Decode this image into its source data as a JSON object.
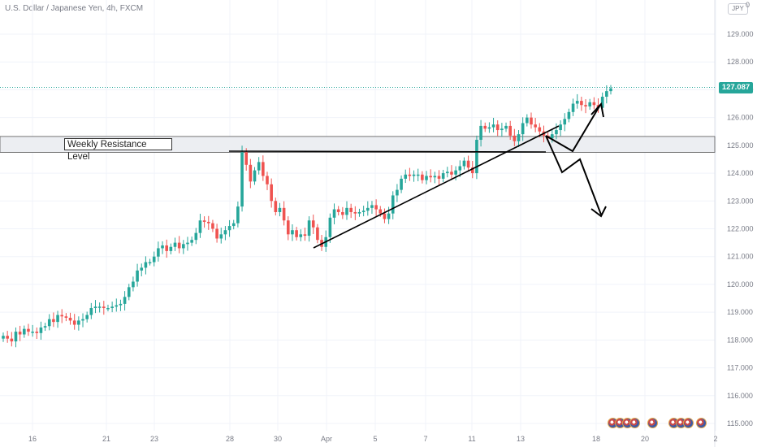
{
  "header": {
    "title": "U.S. Dollar / Japanese Yen, 4h, FXCM",
    "currency_badge": "JPY",
    "top_tick_partial": "0"
  },
  "annotation": {
    "label": "Weekly Resistance Level"
  },
  "price_tag": {
    "value": "127.087",
    "color": "#26a69a"
  },
  "colors": {
    "up": "#26a69a",
    "down": "#ef5350",
    "zone_fill": "#eceef2",
    "line": "#000000"
  },
  "icons": {
    "events": [
      "flag-icon-us",
      "flag-icon-us",
      "flag-icon-us",
      "flag-icon-us",
      "flag-icon-us",
      "flag-icon-us",
      "flag-icon-us",
      "flag-icon-us",
      "flag-icon-us"
    ]
  },
  "chart_data": {
    "type": "candlestick",
    "title": "U.S. Dollar / Japanese Yen, 4h, FXCM",
    "ylim": [
      114.85,
      129.65
    ],
    "y_ticks": [
      "115.000",
      "116.000",
      "117.000",
      "118.000",
      "119.000",
      "120.000",
      "121.000",
      "122.000",
      "123.000",
      "124.000",
      "125.000",
      "126.000",
      "127.000",
      "128.000",
      "129.000"
    ],
    "x_ticks": [
      "16",
      "21",
      "23",
      "28",
      "30",
      "Apr",
      "5",
      "7",
      "11",
      "13",
      "18",
      "20",
      "2"
    ],
    "resistance_zone": [
      124.75,
      125.32
    ],
    "last_price": 127.087,
    "closes": [
      118.15,
      118.05,
      117.95,
      118.3,
      118.2,
      118.4,
      118.3,
      118.3,
      118.25,
      118.45,
      118.5,
      118.75,
      118.65,
      118.9,
      118.85,
      118.8,
      118.7,
      118.55,
      118.7,
      118.75,
      118.9,
      119.15,
      119.2,
      119.2,
      119.15,
      119.15,
      119.2,
      119.25,
      119.3,
      119.55,
      119.9,
      120.1,
      120.5,
      120.6,
      120.8,
      120.8,
      121.0,
      121.3,
      121.4,
      121.2,
      121.35,
      121.5,
      121.3,
      121.45,
      121.5,
      121.6,
      121.85,
      122.3,
      122.25,
      122.2,
      122.0,
      121.65,
      121.8,
      121.95,
      122.1,
      122.2,
      122.8,
      124.75,
      124.3,
      123.7,
      124.1,
      124.4,
      123.9,
      123.6,
      123.0,
      122.6,
      122.75,
      122.3,
      121.8,
      121.95,
      121.7,
      121.8,
      121.75,
      122.3,
      122.05,
      121.6,
      121.35,
      121.7,
      122.4,
      122.7,
      122.6,
      122.5,
      122.75,
      122.6,
      122.55,
      122.6,
      122.65,
      122.75,
      122.85,
      122.7,
      122.55,
      122.35,
      122.55,
      123.2,
      123.4,
      123.8,
      123.95,
      123.9,
      123.95,
      123.95,
      123.75,
      123.9,
      123.85,
      123.9,
      123.8,
      124.0,
      124.05,
      123.95,
      124.1,
      124.25,
      124.45,
      124.2,
      124.0,
      125.2,
      125.7,
      125.6,
      125.65,
      125.75,
      125.55,
      125.6,
      125.7,
      125.35,
      125.15,
      125.4,
      125.8,
      126.0,
      125.75,
      125.65,
      125.5,
      125.35,
      125.25,
      125.4,
      125.55,
      125.75,
      125.95,
      126.2,
      126.5,
      126.6,
      126.45,
      126.4,
      126.55,
      126.45,
      126.35,
      126.75,
      126.95,
      127.05
    ]
  }
}
